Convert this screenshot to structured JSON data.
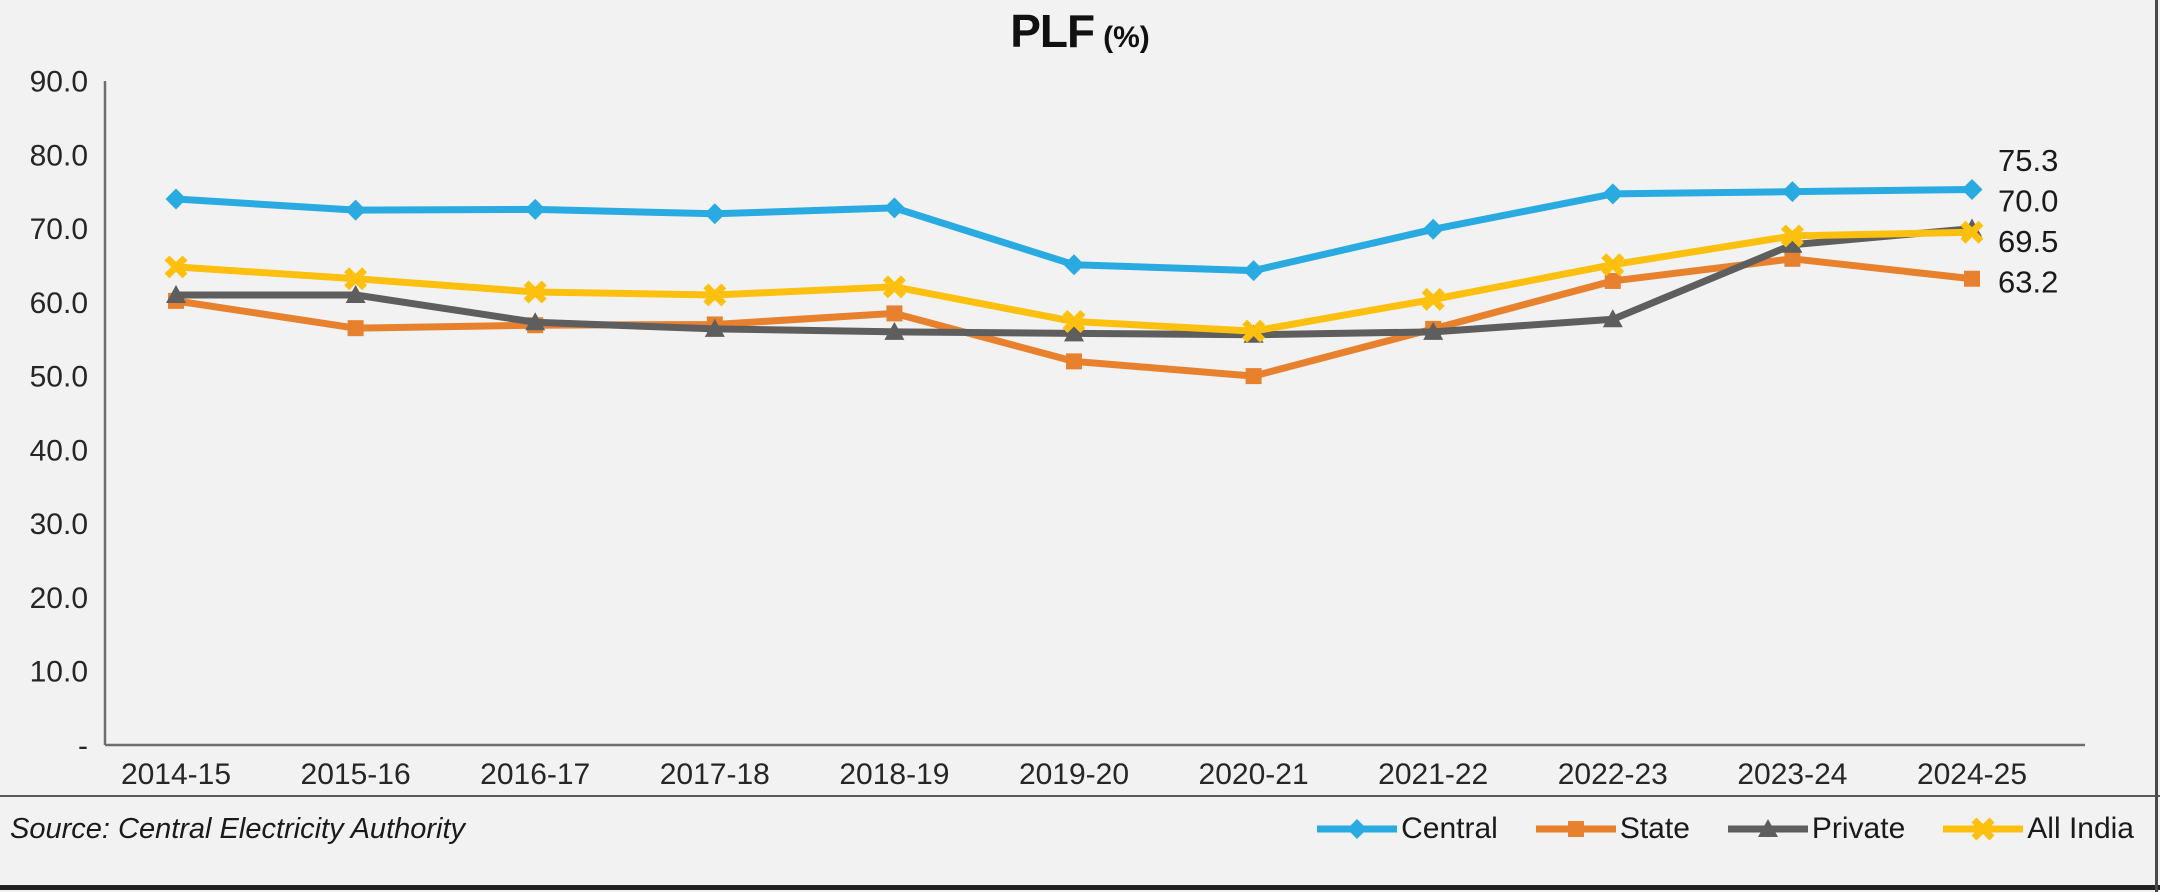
{
  "page": {
    "background": "#F2F2F2",
    "border_color": "#4a4a4a"
  },
  "title": {
    "main": "PLF",
    "suffix": "(%)"
  },
  "source_note": "Source: Central Electricity Authority",
  "axis_color": "#6e6e6e",
  "tick_text_color": "#262626",
  "chart_data": {
    "type": "line",
    "title": "PLF (%)",
    "xlabel": "",
    "ylabel": "",
    "ylim": [
      0,
      90
    ],
    "ytick_step": 10,
    "ytick_labels_top_down": [
      "90.0",
      "80.0",
      "70.0",
      "60.0",
      "50.0",
      "40.0",
      "30.0",
      "20.0",
      "10.0",
      "-"
    ],
    "grid": false,
    "legend_position": "bottom-right",
    "categories": [
      "2014-15",
      "2015-16",
      "2016-17",
      "2017-18",
      "2018-19",
      "2019-20",
      "2020-21",
      "2021-22",
      "2022-23",
      "2023-24",
      "2024-25"
    ],
    "series": [
      {
        "name": "Central",
        "color": "#29ABE2",
        "marker": "diamond",
        "values": [
          74.0,
          72.5,
          72.6,
          72.0,
          72.8,
          65.1,
          64.3,
          69.9,
          74.7,
          75.0,
          75.3
        ],
        "end_label": "75.3"
      },
      {
        "name": "State",
        "color": "#E8812E",
        "marker": "square",
        "values": [
          60.2,
          56.5,
          56.9,
          57.0,
          58.5,
          52.0,
          50.0,
          56.4,
          62.9,
          65.9,
          63.2
        ],
        "end_label": "63.2"
      },
      {
        "name": "Private",
        "color": "#5E5E5E",
        "marker": "triangle",
        "values": [
          61.0,
          61.0,
          57.3,
          56.4,
          56.0,
          55.8,
          55.6,
          56.0,
          57.7,
          67.8,
          70.0
        ],
        "end_label": "70.0"
      },
      {
        "name": "All India",
        "color": "#FDC00F",
        "marker": "x",
        "values": [
          64.8,
          63.2,
          61.4,
          61.0,
          62.1,
          57.4,
          56.1,
          60.4,
          65.1,
          69.0,
          69.5
        ],
        "end_label": "69.5"
      }
    ]
  }
}
